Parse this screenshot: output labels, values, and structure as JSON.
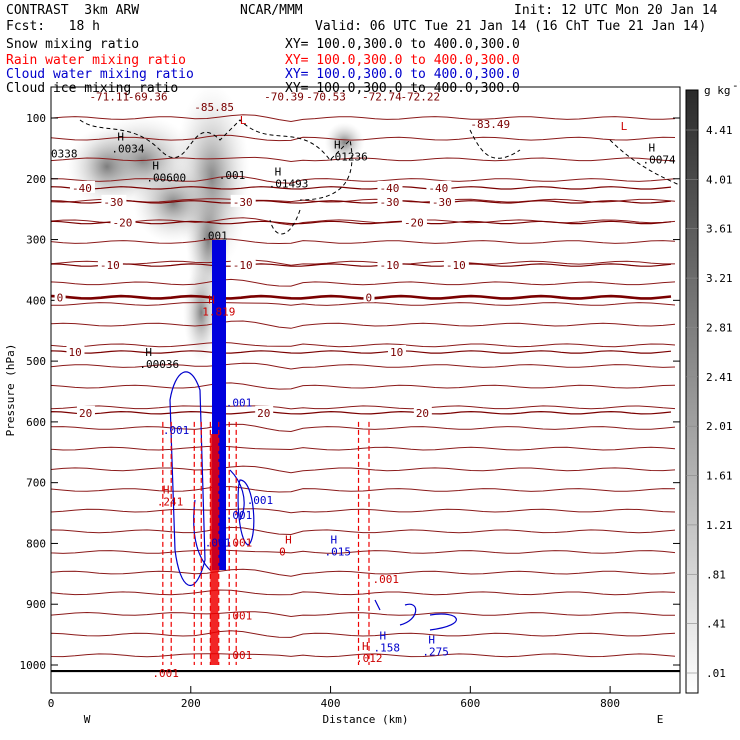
{
  "header": {
    "left_line1": "CONTRAST  3km ARW",
    "left_line2": "Fcst:   18 h",
    "center_line1": "NCAR/MMM",
    "right_line1": "Init: 12 UTC Mon 20 Jan 14",
    "right_line2": "Valid: 06 UTC Tue 21 Jan 14 (16 ChT Tue 21 Jan 14)"
  },
  "fields": [
    {
      "name": "Snow mixing ratio",
      "xy": "XY= 100.0,300.0 to 400.0,300.0",
      "color": "#000000"
    },
    {
      "name": "Rain water mixing ratio",
      "xy": "XY= 100.0,300.0 to 400.0,300.0",
      "color": "#ff0000"
    },
    {
      "name": "Cloud water mixing ratio",
      "xy": "XY= 100.0,300.0 to 400.0,300.0",
      "color": "#0000cc"
    },
    {
      "name": "Cloud ice mixing ratio",
      "xy": "XY= 100.0,300.0 to 400.0,300.0",
      "color": "#000000"
    }
  ],
  "chart_data": {
    "type": "contour",
    "xlabel": "Distance (km)",
    "ylabel": "Pressure (hPa)",
    "xlim": [
      0,
      900
    ],
    "ylim": [
      1050,
      50
    ],
    "x_ticks": [
      0,
      200,
      400,
      600,
      800
    ],
    "x_tick_labels": [
      "0",
      "200",
      "400",
      "600",
      "800"
    ],
    "y_ticks": [
      100,
      200,
      300,
      400,
      500,
      600,
      700,
      800,
      900,
      1000
    ],
    "y_tick_labels": [
      "100",
      "200",
      "300",
      "400",
      "500",
      "600",
      "700",
      "800",
      "900",
      "1000"
    ],
    "direction_labels": {
      "left": "W",
      "right": "E"
    },
    "colorbar": {
      "unit": "g kg",
      "unit_exp": "-1",
      "levels": [
        ".01",
        ".41",
        ".81",
        "1.21",
        "1.61",
        "2.01",
        "2.41",
        "2.81",
        "3.21",
        "3.61",
        "4.01",
        "4.41"
      ]
    },
    "temperature_contours": [
      {
        "label": "-40",
        "p": 215,
        "labels_at": [
          30,
          470,
          540
        ]
      },
      {
        "label": "-30",
        "p": 238,
        "labels_at": [
          75,
          260,
          470,
          545
        ]
      },
      {
        "label": "-20",
        "p": 272,
        "labels_at": [
          88,
          505
        ]
      },
      {
        "label": "-10",
        "p": 342,
        "labels_at": [
          70,
          260,
          470,
          565
        ]
      },
      {
        "label": "0",
        "p": 395,
        "labels_at": [
          8,
          450
        ]
      },
      {
        "label": "10",
        "p": 485,
        "labels_at": [
          25,
          485
        ]
      },
      {
        "label": "20",
        "p": 585,
        "labels_at": [
          40,
          295,
          522
        ]
      }
    ],
    "top_temperature_labels": [
      "-71.11",
      "-69.36",
      "-70.39",
      "-70.53",
      "-72.74",
      "-72.22",
      "-83.49",
      "-85.85"
    ],
    "extrema_labels": [
      {
        "kind": "H",
        "value": ".0034",
        "x": 95,
        "p": 137,
        "color": "#000000"
      },
      {
        "kind": "H",
        "value": ".00600",
        "x": 145,
        "p": 185,
        "color": "#000000"
      },
      {
        "kind": "H",
        "value": ".01236",
        "x": 405,
        "p": 150,
        "color": "#000000"
      },
      {
        "kind": "H",
        "value": ".01493",
        "x": 320,
        "p": 195,
        "color": "#000000"
      },
      {
        "kind": "H",
        "value": ".0074",
        "x": 855,
        "p": 155,
        "color": "#000000"
      },
      {
        "kind": "H",
        "value": ".00036",
        "x": 135,
        "p": 492,
        "color": "#000000"
      },
      {
        "kind": "L",
        "value": "",
        "x": 270,
        "p": 110,
        "color": "#cc0000"
      },
      {
        "kind": "L",
        "value": "",
        "x": 815,
        "p": 120,
        "color": "#cc0000"
      },
      {
        "kind": "H",
        "value": "1.819",
        "x": 225,
        "p": 405,
        "color": "#cc0000"
      },
      {
        "kind": "H",
        "value": ".241",
        "x": 160,
        "p": 718,
        "color": "#cc0000"
      },
      {
        "kind": "H",
        "value": "0",
        "x": 335,
        "p": 800,
        "color": "#cc0000"
      },
      {
        "kind": "H",
        "value": ".015",
        "x": 400,
        "p": 800,
        "color": "#0000cc"
      },
      {
        "kind": "H",
        "value": ".158",
        "x": 470,
        "p": 958,
        "color": "#0000cc"
      },
      {
        "kind": "H",
        "value": ".275",
        "x": 540,
        "p": 965,
        "color": "#0000cc"
      },
      {
        "kind": "H",
        "value": ".012",
        "x": 445,
        "p": 975,
        "color": "#cc0000"
      }
    ],
    "other_labels": [
      {
        "text": ".001",
        "x": 160,
        "p": 620,
        "color": "#0000cc"
      },
      {
        "text": ".001",
        "x": 250,
        "p": 575,
        "color": "#0000cc"
      },
      {
        "text": ".001",
        "x": 250,
        "p": 760,
        "color": "#0000cc"
      },
      {
        "text": ".001",
        "x": 220,
        "p": 805,
        "color": "#0000cc"
      },
      {
        "text": ".001",
        "x": 280,
        "p": 735,
        "color": "#0000cc"
      },
      {
        "text": ".001",
        "x": 460,
        "p": 865,
        "color": "#cc0000"
      },
      {
        "text": ".001",
        "x": 250,
        "p": 925,
        "color": "#cc0000"
      },
      {
        "text": ".001",
        "x": 250,
        "p": 990,
        "color": "#cc0000"
      },
      {
        "text": ".001",
        "x": 145,
        "p": 1020,
        "color": "#cc0000"
      },
      {
        "text": ".001",
        "x": 250,
        "p": 805,
        "color": "#cc0000"
      },
      {
        "text": ".001",
        "x": 240,
        "p": 200,
        "color": "#000000"
      },
      {
        "text": ".001",
        "x": 215,
        "p": 300,
        "color": "#000000"
      },
      {
        "text": "0338",
        "x": 0,
        "p": 165,
        "color": "#000000"
      }
    ]
  }
}
